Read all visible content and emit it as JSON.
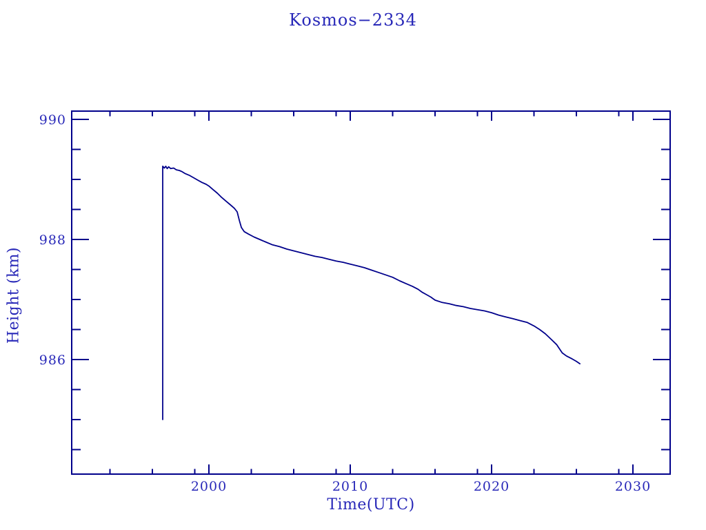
{
  "colors": {
    "line": "#00008b",
    "text": "#2828b8",
    "background": "#ffffff"
  },
  "chart_data": {
    "type": "line",
    "title": "Kosmos−2334",
    "xlabel": "Time(UTC)",
    "ylabel": "Height (km)",
    "xlim": [
      1990.2,
      2032.7
    ],
    "ylim": [
      984.1,
      990.15
    ],
    "grid": false,
    "legend": null,
    "x_major_ticks": [
      2000,
      2010,
      2020,
      2030
    ],
    "x_minor_ticks": [
      1993,
      1996,
      1999,
      2003,
      2006,
      2009,
      2013,
      2016,
      2019,
      2023,
      2026,
      2029
    ],
    "y_major_ticks": [
      990,
      988,
      986
    ],
    "y_minor_ticks": [
      989.5,
      989.0,
      988.5,
      987.5,
      987.0,
      986.5,
      985.5,
      985.0,
      984.5
    ],
    "series": [
      {
        "name": "height-km",
        "points": [
          [
            1996.73,
            985.0
          ],
          [
            1996.73,
            989.22
          ],
          [
            1996.85,
            989.19
          ],
          [
            1996.95,
            989.22
          ],
          [
            1997.05,
            989.18
          ],
          [
            1997.15,
            989.21
          ],
          [
            1997.3,
            989.18
          ],
          [
            1997.5,
            989.19
          ],
          [
            1997.7,
            989.16
          ],
          [
            1997.9,
            989.15
          ],
          [
            1998.1,
            989.13
          ],
          [
            1998.3,
            989.1
          ],
          [
            1998.6,
            989.07
          ],
          [
            1998.9,
            989.03
          ],
          [
            1999.2,
            988.99
          ],
          [
            1999.5,
            988.95
          ],
          [
            1999.8,
            988.92
          ],
          [
            2000.0,
            988.89
          ],
          [
            2000.3,
            988.83
          ],
          [
            2000.6,
            988.77
          ],
          [
            2000.9,
            988.7
          ],
          [
            2001.2,
            988.64
          ],
          [
            2001.5,
            988.58
          ],
          [
            2001.8,
            988.52
          ],
          [
            2002.0,
            988.46
          ],
          [
            2002.15,
            988.32
          ],
          [
            2002.3,
            988.2
          ],
          [
            2002.5,
            988.13
          ],
          [
            2002.8,
            988.09
          ],
          [
            2003.2,
            988.04
          ],
          [
            2003.6,
            988.0
          ],
          [
            2004.0,
            987.96
          ],
          [
            2004.5,
            987.91
          ],
          [
            2005.0,
            987.88
          ],
          [
            2005.5,
            987.84
          ],
          [
            2006.0,
            987.81
          ],
          [
            2006.5,
            987.78
          ],
          [
            2007.0,
            987.75
          ],
          [
            2007.5,
            987.72
          ],
          [
            2008.0,
            987.7
          ],
          [
            2008.5,
            987.67
          ],
          [
            2009.0,
            987.64
          ],
          [
            2009.5,
            987.62
          ],
          [
            2010.0,
            987.59
          ],
          [
            2010.5,
            987.56
          ],
          [
            2011.0,
            987.53
          ],
          [
            2011.5,
            987.49
          ],
          [
            2012.0,
            987.45
          ],
          [
            2012.5,
            987.41
          ],
          [
            2013.0,
            987.37
          ],
          [
            2013.5,
            987.31
          ],
          [
            2014.0,
            987.26
          ],
          [
            2014.4,
            987.22
          ],
          [
            2014.8,
            987.17
          ],
          [
            2015.1,
            987.12
          ],
          [
            2015.4,
            987.08
          ],
          [
            2015.7,
            987.04
          ],
          [
            2016.0,
            986.99
          ],
          [
            2016.5,
            986.95
          ],
          [
            2017.0,
            986.93
          ],
          [
            2017.5,
            986.9
          ],
          [
            2018.0,
            986.88
          ],
          [
            2018.5,
            986.85
          ],
          [
            2019.0,
            986.83
          ],
          [
            2019.5,
            986.81
          ],
          [
            2020.0,
            986.78
          ],
          [
            2020.5,
            986.74
          ],
          [
            2021.0,
            986.71
          ],
          [
            2021.5,
            986.68
          ],
          [
            2022.0,
            986.65
          ],
          [
            2022.5,
            986.62
          ],
          [
            2023.0,
            986.56
          ],
          [
            2023.4,
            986.5
          ],
          [
            2023.8,
            986.43
          ],
          [
            2024.2,
            986.34
          ],
          [
            2024.6,
            986.25
          ],
          [
            2025.0,
            986.11
          ],
          [
            2025.3,
            986.06
          ],
          [
            2025.7,
            986.01
          ],
          [
            2026.0,
            985.97
          ],
          [
            2026.25,
            985.93
          ]
        ]
      }
    ]
  }
}
